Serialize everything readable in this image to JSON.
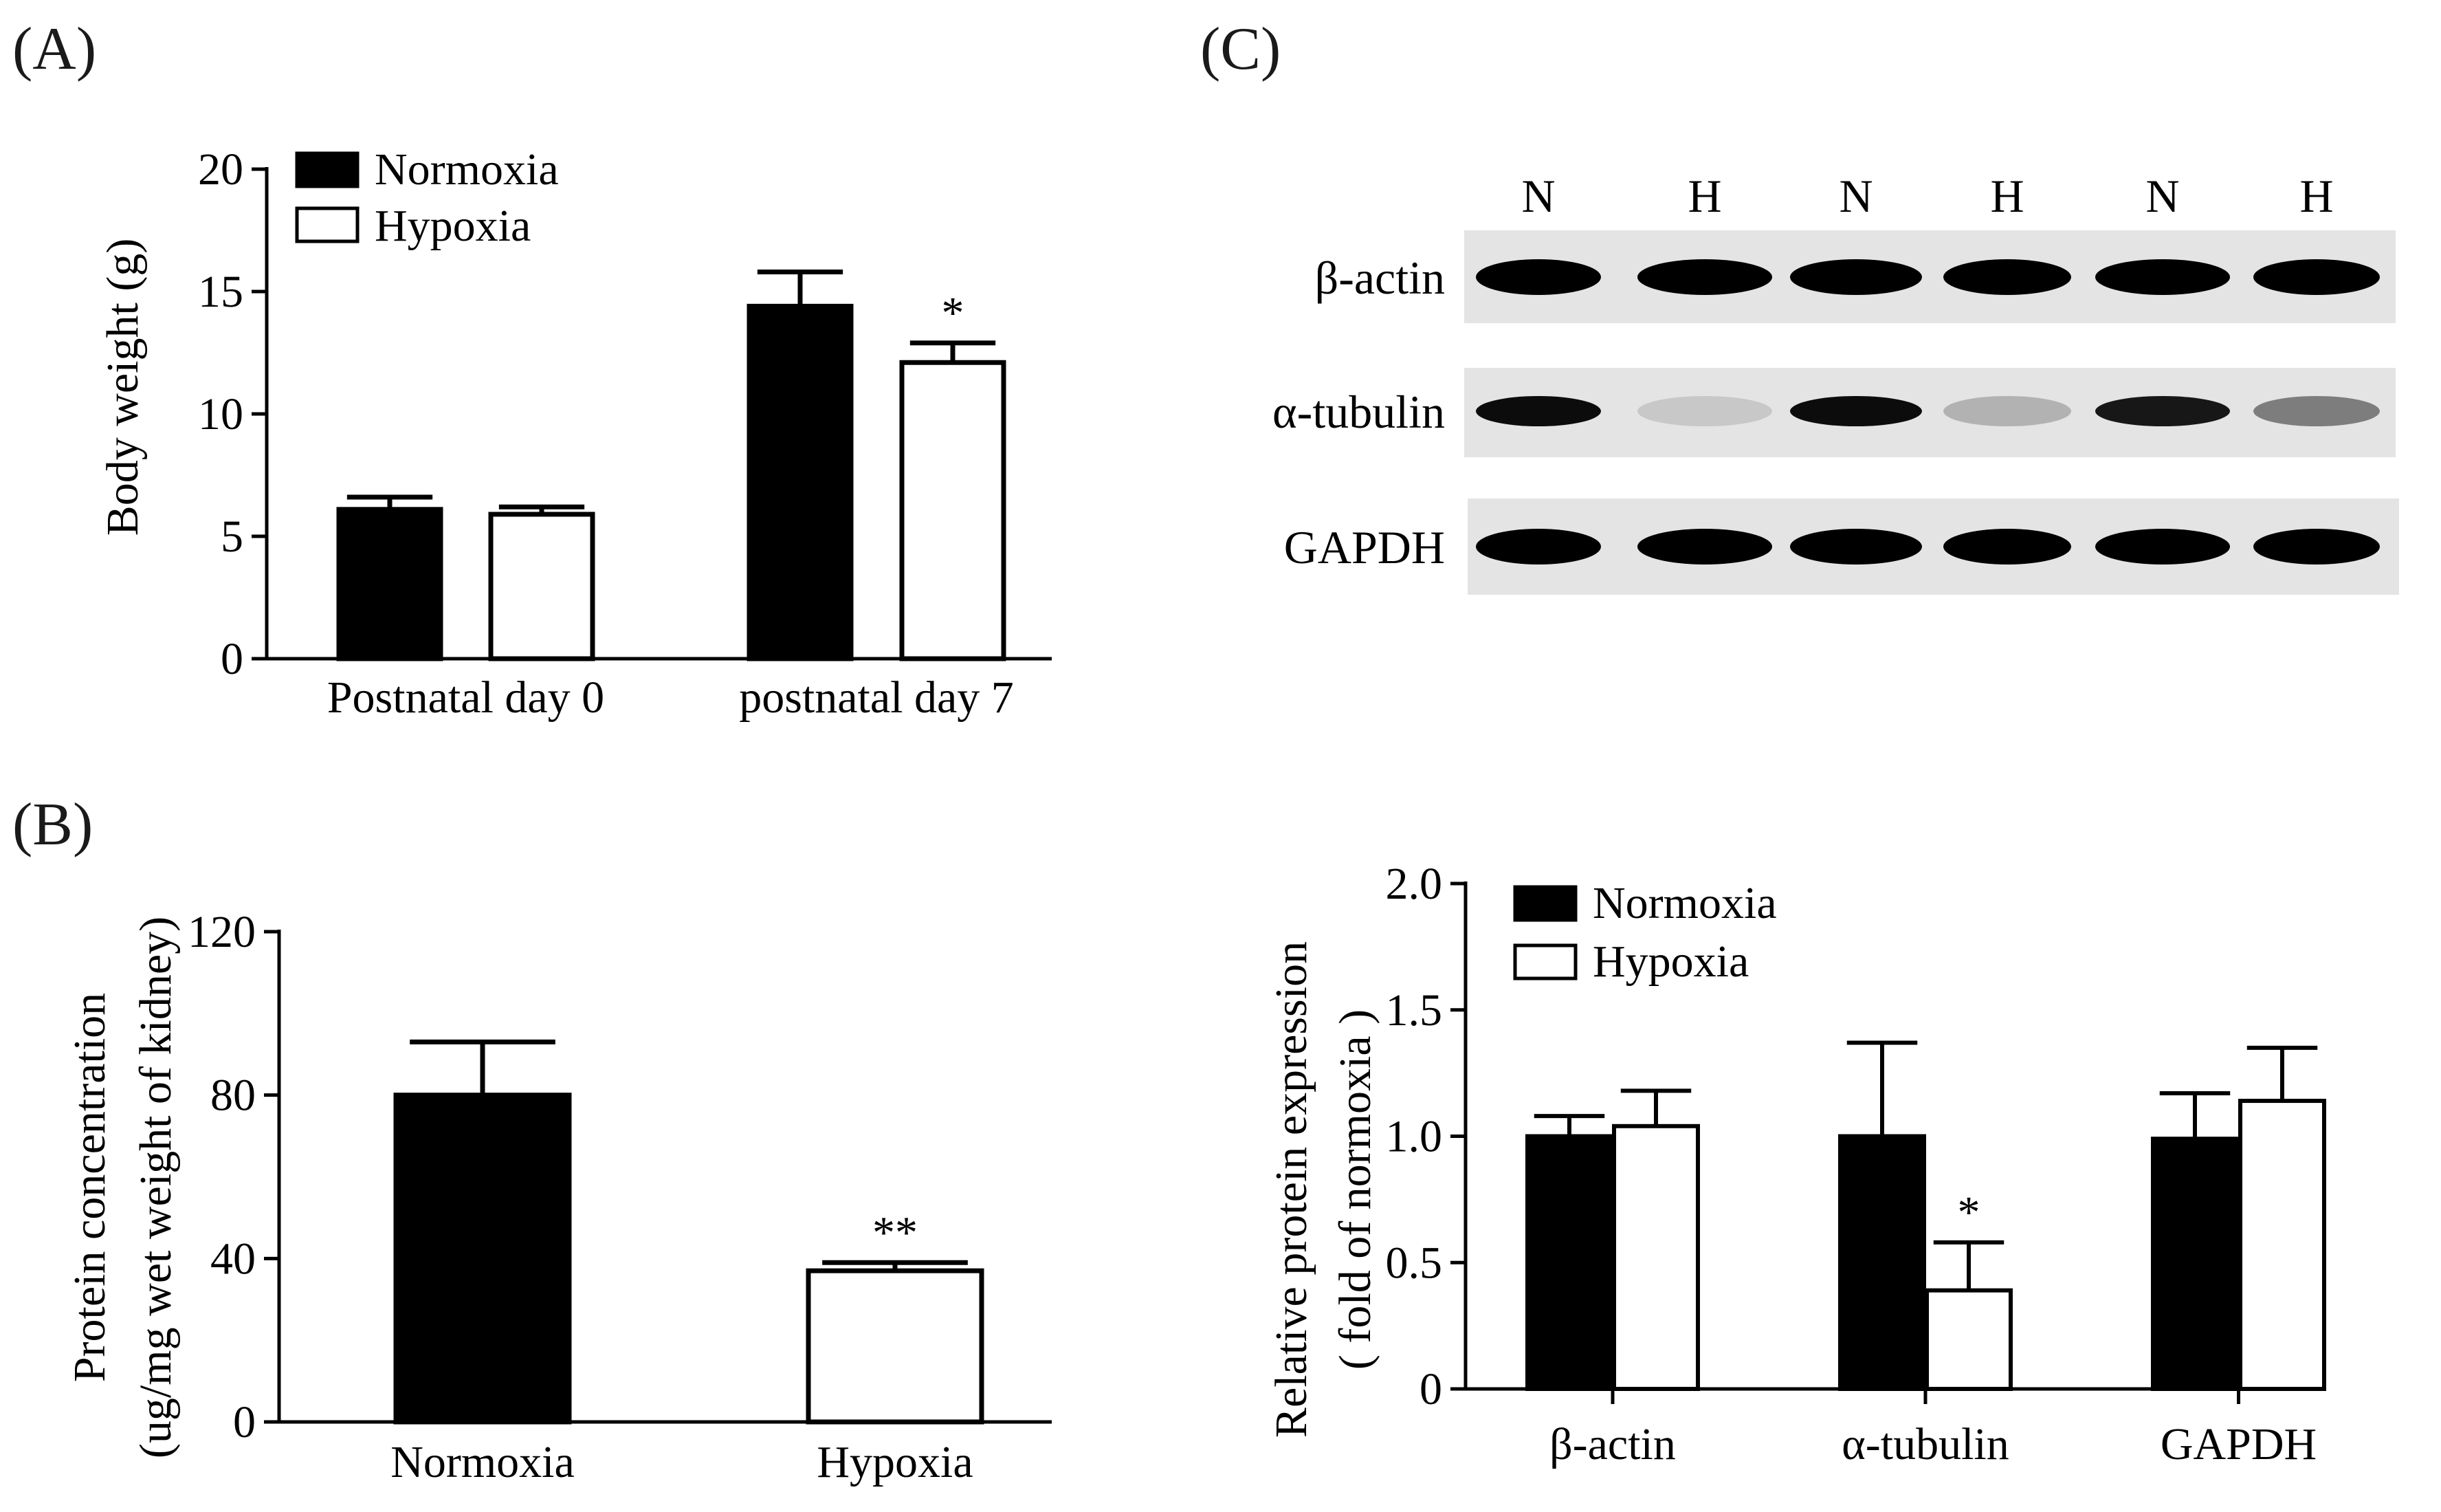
{
  "panels": {
    "a": "(A)",
    "b": "(B)",
    "c": "(C)"
  },
  "colors": {
    "normoxia_fill": "#000000",
    "hypoxia_fill": "#ffffff",
    "axis": "#000000",
    "blot_background": "#e4e4e4",
    "band": "#000000"
  },
  "chart_data": [
    {
      "id": "A",
      "type": "bar",
      "ylabel": "Body weight (g)",
      "xlabel": "",
      "ylim": [
        0,
        20
      ],
      "yticks": [
        0,
        5,
        10,
        15,
        20
      ],
      "categories": [
        "Postnatal day 0",
        "postnatal day 7"
      ],
      "series": [
        {
          "name": "Normoxia",
          "values": [
            6.1,
            14.4
          ],
          "errors": [
            0.5,
            1.4
          ]
        },
        {
          "name": "Hypoxia",
          "values": [
            5.9,
            12.1
          ],
          "errors": [
            0.3,
            0.8
          ]
        }
      ],
      "annotations": [
        {
          "series": 1,
          "category": 1,
          "text": "*"
        }
      ],
      "legend": "top-left",
      "grid": false
    },
    {
      "id": "B",
      "type": "bar",
      "ylabel": "Protein concentration",
      "ylabel2": "(ug/mg wet weight of kidney)",
      "xlabel": "",
      "ylim": [
        0,
        120
      ],
      "yticks": [
        0,
        40,
        80,
        120
      ],
      "categories": [
        "Normoxia",
        "Hypoxia"
      ],
      "series": [
        {
          "values": [
            80,
            37
          ],
          "errors": [
            13,
            2
          ]
        }
      ],
      "annotations": [
        {
          "category": 1,
          "text": "**"
        }
      ],
      "grid": false
    },
    {
      "id": "C",
      "type": "bar",
      "ylabel": "Relative protein expression",
      "ylabel2": "( fold of normoxia )",
      "xlabel": "",
      "ylim": [
        0,
        2.0
      ],
      "yticks": [
        0,
        0.5,
        1.0,
        1.5,
        2.0
      ],
      "ytick_labels": [
        "0",
        "0.5",
        "1.0",
        "1.5",
        "2.0"
      ],
      "categories": [
        "β-actin",
        "α-tubulin",
        "GAPDH"
      ],
      "series": [
        {
          "name": "Normoxia",
          "values": [
            1.0,
            1.0,
            0.99
          ],
          "errors": [
            0.08,
            0.37,
            0.18
          ]
        },
        {
          "name": "Hypoxia",
          "values": [
            1.04,
            0.39,
            1.14
          ],
          "errors": [
            0.14,
            0.19,
            0.21
          ]
        }
      ],
      "annotations": [
        {
          "series": 1,
          "category": 1,
          "text": "*"
        }
      ],
      "legend": "top-left",
      "grid": false
    }
  ],
  "blot": {
    "lanes": [
      "N",
      "H",
      "N",
      "H",
      "N",
      "H"
    ],
    "rows": [
      {
        "label": "β-actin",
        "intensities": [
          1.0,
          1.0,
          1.0,
          1.0,
          1.0,
          1.0
        ]
      },
      {
        "label": "α-tubulin",
        "intensities": [
          0.95,
          0.12,
          0.95,
          0.22,
          0.9,
          0.45
        ]
      },
      {
        "label": "GAPDH",
        "intensities": [
          1.0,
          1.0,
          1.0,
          1.0,
          1.0,
          1.0
        ]
      }
    ]
  }
}
